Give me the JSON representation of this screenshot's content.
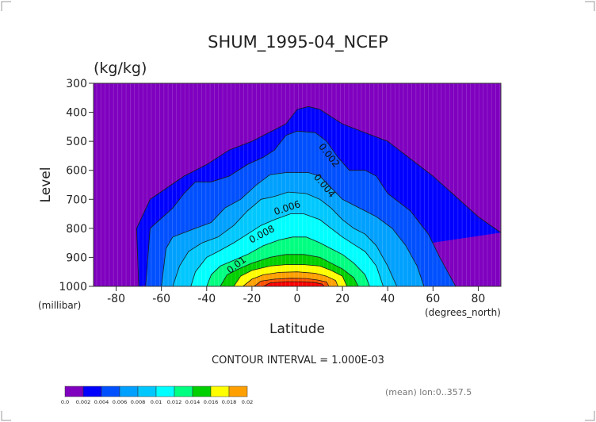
{
  "chart_data": {
    "type": "heatmap",
    "title": "SHUM_1995-04_NCEP",
    "units": "(kg/kg)",
    "xlabel": "Latitude",
    "x_unit_label": "(degrees_north)",
    "ylabel": "Level",
    "y_unit_label": "(millibar)",
    "xlim": [
      -90,
      90
    ],
    "ylim": [
      1000,
      300
    ],
    "x_ticks": [
      "-80",
      "-60",
      "-40",
      "-20",
      "0",
      "20",
      "40",
      "60",
      "80"
    ],
    "y_ticks": [
      "300",
      "400",
      "500",
      "600",
      "700",
      "800",
      "900",
      "1000"
    ],
    "contour_interval_text": "CONTOUR INTERVAL = 1.000E-03",
    "footnote": "(mean) lon:0..357.5",
    "colorbar_labels": [
      "0.0",
      "0.002",
      "0.004",
      "0.006",
      "0.008",
      "0.01",
      "0.012",
      "0.014",
      "0.016",
      "0.018",
      "0.02"
    ],
    "colorbar_colors": [
      "#7f00bf",
      "#0000ff",
      "#0050ff",
      "#00a0ff",
      "#00c8ff",
      "#00ffff",
      "#00ff80",
      "#00d000",
      "#ffff00",
      "#ffa000",
      "#ff5000",
      "#ff0000"
    ],
    "contour_labels": [
      {
        "text": "0.002",
        "lat": 13,
        "level": 555
      },
      {
        "text": "0.004",
        "lat": 11,
        "level": 660
      },
      {
        "text": "0.006",
        "lat": -4,
        "level": 740
      },
      {
        "text": "0.008",
        "lat": -15,
        "level": 830
      },
      {
        "text": "0.01",
        "lat": -26,
        "level": 935
      }
    ],
    "isolines": [
      {
        "value": 0.001,
        "band": 1,
        "points": [
          [
            -70,
            1000
          ],
          [
            -71,
            800
          ],
          [
            -65,
            700
          ],
          [
            -50,
            620
          ],
          [
            -40,
            580
          ],
          [
            -30,
            530
          ],
          [
            -20,
            500
          ],
          [
            -5,
            440
          ],
          [
            0,
            390
          ],
          [
            5,
            380
          ],
          [
            10,
            390
          ],
          [
            20,
            440
          ],
          [
            30,
            470
          ],
          [
            40,
            500
          ],
          [
            50,
            560
          ],
          [
            60,
            620
          ],
          [
            70,
            690
          ],
          [
            80,
            760
          ],
          [
            90,
            815
          ]
        ]
      },
      {
        "value": 0.002,
        "band": 2,
        "points": [
          [
            -67,
            1000
          ],
          [
            -65,
            800
          ],
          [
            -55,
            730
          ],
          [
            -50,
            680
          ],
          [
            -45,
            640
          ],
          [
            -38,
            640
          ],
          [
            -30,
            620
          ],
          [
            -22,
            580
          ],
          [
            -15,
            555
          ],
          [
            -10,
            530
          ],
          [
            -5,
            480
          ],
          [
            0,
            465
          ],
          [
            8,
            470
          ],
          [
            13,
            500
          ],
          [
            18,
            555
          ],
          [
            23,
            600
          ],
          [
            30,
            600
          ],
          [
            35,
            620
          ],
          [
            40,
            680
          ],
          [
            50,
            740
          ],
          [
            58,
            820
          ],
          [
            63,
            900
          ],
          [
            70,
            1000
          ]
        ]
      },
      {
        "value": 0.003,
        "band": 3,
        "points": [
          [
            -60,
            1000
          ],
          [
            -58,
            870
          ],
          [
            -55,
            830
          ],
          [
            -45,
            800
          ],
          [
            -38,
            780
          ],
          [
            -32,
            730
          ],
          [
            -25,
            700
          ],
          [
            -18,
            650
          ],
          [
            -12,
            615
          ],
          [
            -5,
            608
          ],
          [
            5,
            608
          ],
          [
            10,
            620
          ],
          [
            15,
            660
          ],
          [
            20,
            700
          ],
          [
            25,
            720
          ],
          [
            30,
            740
          ],
          [
            35,
            760
          ],
          [
            42,
            800
          ],
          [
            48,
            860
          ],
          [
            53,
            930
          ],
          [
            56,
            1000
          ]
        ]
      },
      {
        "value": 0.004,
        "band": 4,
        "points": [
          [
            -55,
            1000
          ],
          [
            -52,
            930
          ],
          [
            -48,
            880
          ],
          [
            -42,
            850
          ],
          [
            -35,
            830
          ],
          [
            -28,
            790
          ],
          [
            -22,
            740
          ],
          [
            -16,
            700
          ],
          [
            -10,
            690
          ],
          [
            -4,
            675
          ],
          [
            4,
            680
          ],
          [
            10,
            700
          ],
          [
            15,
            730
          ],
          [
            20,
            770
          ],
          [
            25,
            800
          ],
          [
            30,
            820
          ],
          [
            35,
            860
          ],
          [
            40,
            930
          ],
          [
            44,
            1000
          ]
        ]
      },
      {
        "value": 0.005,
        "band": 5,
        "points": [
          [
            -47,
            1000
          ],
          [
            -45,
            950
          ],
          [
            -40,
            900
          ],
          [
            -35,
            880
          ],
          [
            -28,
            850
          ],
          [
            -22,
            820
          ],
          [
            -16,
            790
          ],
          [
            -10,
            770
          ],
          [
            -3,
            750
          ],
          [
            3,
            750
          ],
          [
            10,
            770
          ],
          [
            15,
            800
          ],
          [
            20,
            830
          ],
          [
            26,
            860
          ],
          [
            30,
            880
          ],
          [
            35,
            930
          ],
          [
            38,
            1000
          ]
        ]
      },
      {
        "value": 0.006,
        "band": 6,
        "points": [
          [
            -40,
            1000
          ],
          [
            -38,
            960
          ],
          [
            -34,
            930
          ],
          [
            -28,
            910
          ],
          [
            -22,
            890
          ],
          [
            -15,
            860
          ],
          [
            -8,
            840
          ],
          [
            -2,
            830
          ],
          [
            4,
            830
          ],
          [
            10,
            850
          ],
          [
            15,
            870
          ],
          [
            20,
            890
          ],
          [
            25,
            920
          ],
          [
            30,
            960
          ],
          [
            32,
            1000
          ]
        ]
      },
      {
        "value": 0.007,
        "band": 7,
        "points": [
          [
            -34,
            1000
          ],
          [
            -31,
            960
          ],
          [
            -26,
            940
          ],
          [
            -20,
            920
          ],
          [
            -12,
            900
          ],
          [
            -5,
            890
          ],
          [
            3,
            890
          ],
          [
            10,
            900
          ],
          [
            15,
            920
          ],
          [
            20,
            940
          ],
          [
            25,
            970
          ],
          [
            27,
            1000
          ]
        ]
      },
      {
        "value": 0.008,
        "band": 8,
        "points": [
          [
            -28,
            1000
          ],
          [
            -25,
            965
          ],
          [
            -20,
            945
          ],
          [
            -12,
            930
          ],
          [
            -5,
            925
          ],
          [
            3,
            925
          ],
          [
            10,
            930
          ],
          [
            15,
            945
          ],
          [
            20,
            965
          ],
          [
            22,
            1000
          ]
        ]
      },
      {
        "value": 0.009,
        "band": 9,
        "points": [
          [
            -24,
            1000
          ],
          [
            -20,
            975
          ],
          [
            -15,
            960
          ],
          [
            -8,
            952
          ],
          [
            0,
            950
          ],
          [
            8,
            955
          ],
          [
            13,
            965
          ],
          [
            17,
            980
          ],
          [
            18,
            1000
          ]
        ]
      },
      {
        "value": 0.01,
        "band": 10,
        "points": [
          [
            -19,
            1000
          ],
          [
            -16,
            982
          ],
          [
            -10,
            975
          ],
          [
            -3,
            972
          ],
          [
            4,
            973
          ],
          [
            9,
            978
          ],
          [
            13,
            985
          ],
          [
            14,
            1000
          ]
        ]
      },
      {
        "value": 0.011,
        "band": 11,
        "points": [
          [
            -15,
            1000
          ],
          [
            -12,
            988
          ],
          [
            -5,
            984
          ],
          [
            2,
            984
          ],
          [
            8,
            987
          ],
          [
            11,
            992
          ],
          [
            12,
            1000
          ]
        ]
      }
    ]
  }
}
